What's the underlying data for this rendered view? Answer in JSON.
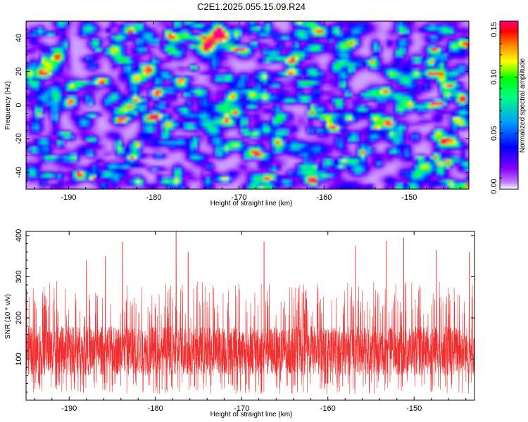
{
  "title": "C2E1.2025.055.15.09.R24",
  "chart_data": [
    {
      "type": "heatmap",
      "title": "C2E1.2025.055.15.09.R24",
      "xlabel": "Height of straight line (km)",
      "ylabel": "Frequency (Hz)",
      "xlim": [
        -195,
        -143
      ],
      "ylim": [
        -50,
        50
      ],
      "x_ticks": [
        -190,
        -180,
        -170,
        -160,
        -150
      ],
      "y_ticks": [
        -40,
        -20,
        0,
        20,
        40
      ],
      "colorbar": {
        "label": "Normalized spectral amplitude",
        "range": [
          0,
          0.15
        ],
        "ticks": [
          "0.00",
          "0.05",
          "0.10",
          "0.15"
        ],
        "colors": [
          "#ffffff",
          "#8800ff",
          "#0000ff",
          "#00a0ff",
          "#00ff80",
          "#00ff00",
          "#ffff00",
          "#ff8000",
          "#ff0000",
          "#ff0080"
        ]
      },
      "notable_peaks": [
        {
          "x": -193.5,
          "y": -5,
          "value": 0.13
        },
        {
          "x": -161.5,
          "y": -1,
          "value": 0.14
        },
        {
          "x": -175.5,
          "y": 23,
          "value": 0.12
        },
        {
          "x": -167.5,
          "y": -48,
          "value": 0.11
        },
        {
          "x": -182.5,
          "y": -4,
          "value": 0.1
        },
        {
          "x": -157,
          "y": 21,
          "value": 0.1
        }
      ]
    },
    {
      "type": "line",
      "xlabel": "Height of straight line (km)",
      "ylabel": "SNR (10 * v/v)",
      "xlim": [
        -195,
        -143
      ],
      "ylim": [
        0,
        410
      ],
      "x_ticks": [
        -190,
        -180,
        -170,
        -160,
        -150
      ],
      "y_ticks": [
        100,
        200,
        300,
        400
      ],
      "series": [
        {
          "name": "SNR",
          "color": "#f03030",
          "x_range": [
            -195,
            -143
          ],
          "n_points": 3000,
          "baseline": 120,
          "typical_low": 50,
          "typical_high": 200,
          "peaks": [
            {
              "x": -177.6,
              "y": 410
            },
            {
              "x": -151.2,
              "y": 395
            },
            {
              "x": -153.2,
              "y": 387
            },
            {
              "x": -167.4,
              "y": 385
            },
            {
              "x": -183.8,
              "y": 385
            },
            {
              "x": -156.8,
              "y": 375
            },
            {
              "x": -147.4,
              "y": 365
            },
            {
              "x": -176.2,
              "y": 360
            },
            {
              "x": -185.8,
              "y": 350
            },
            {
              "x": -188.0,
              "y": 340
            },
            {
              "x": -143.6,
              "y": 360
            }
          ]
        }
      ]
    }
  ]
}
